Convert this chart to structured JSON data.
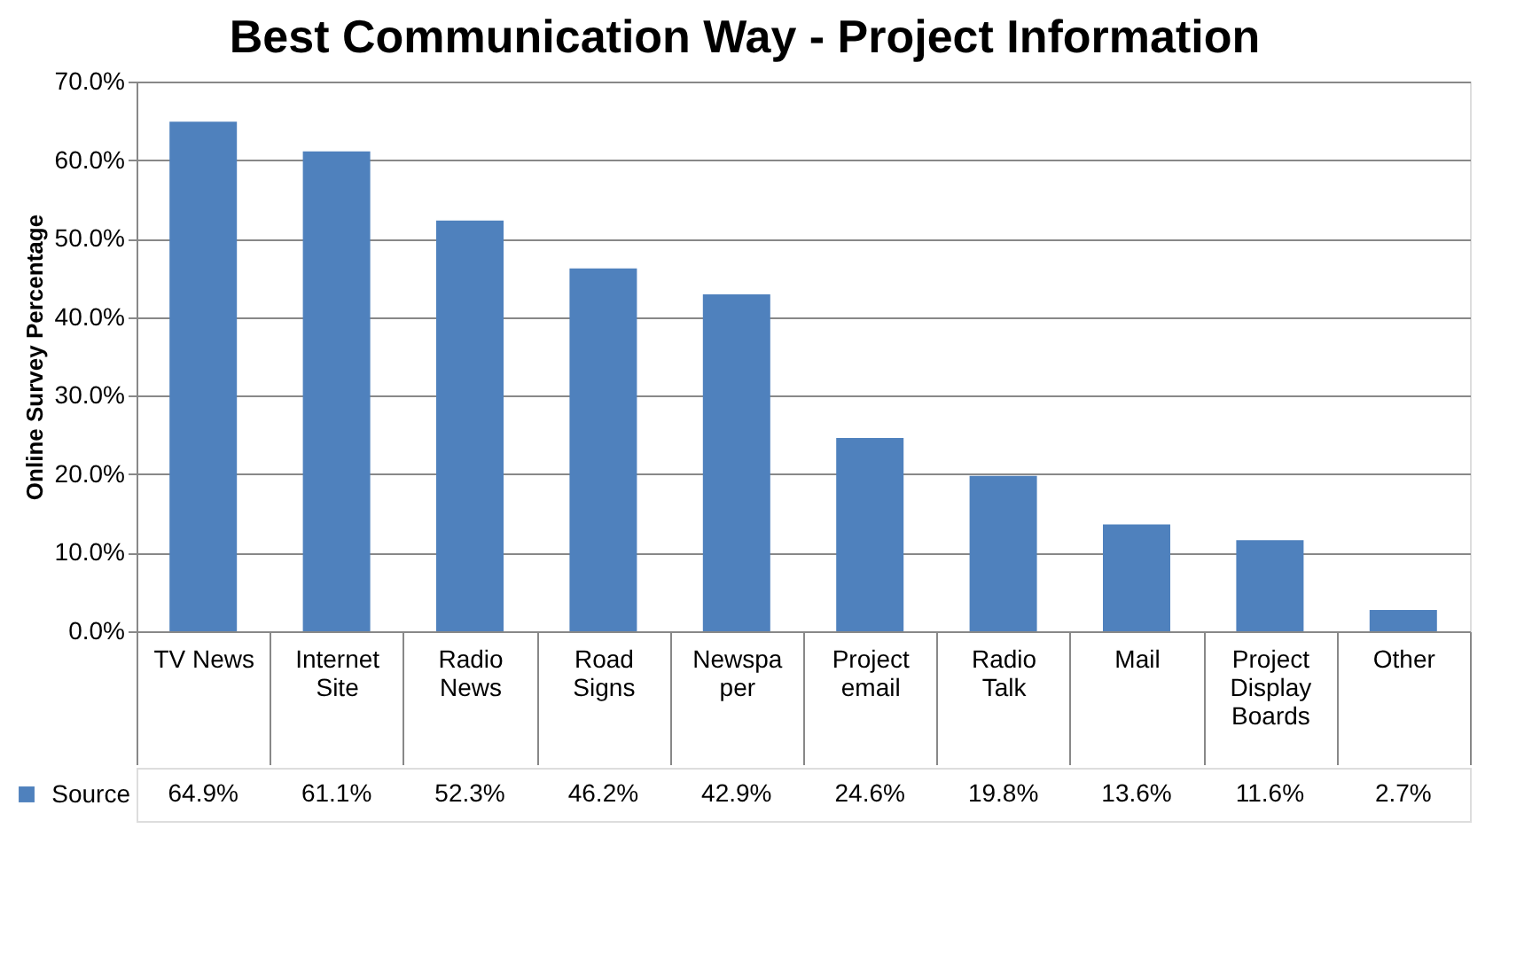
{
  "chart_data": {
    "type": "bar",
    "title": "Best Communication Way - Project Information",
    "ylabel": "Online Survey Percentage",
    "categories": [
      "TV News",
      "Internet Site",
      "Radio News",
      "Road Signs",
      "Newspaper",
      "Project email",
      "Radio Talk",
      "Mail",
      "Project Display Boards",
      "Other"
    ],
    "series": [
      {
        "name": "Source",
        "color": "#4f81bd",
        "values": [
          64.9,
          61.1,
          52.3,
          46.2,
          42.9,
          24.6,
          19.8,
          13.6,
          11.6,
          2.7
        ],
        "value_labels": [
          "64.9%",
          "61.1%",
          "52.3%",
          "46.2%",
          "42.9%",
          "24.6%",
          "19.8%",
          "13.6%",
          "11.6%",
          "2.7%"
        ]
      }
    ],
    "ylim": [
      0,
      70
    ],
    "yticks": [
      {
        "value": 0,
        "label": "0.0%"
      },
      {
        "value": 10,
        "label": "10.0%"
      },
      {
        "value": 20,
        "label": "20.0%"
      },
      {
        "value": 30,
        "label": "30.0%"
      },
      {
        "value": 40,
        "label": "40.0%"
      },
      {
        "value": 50,
        "label": "50.0%"
      },
      {
        "value": 60,
        "label": "60.0%"
      },
      {
        "value": 70,
        "label": "70.0%"
      }
    ],
    "grid": "y",
    "legend": "bottom"
  }
}
